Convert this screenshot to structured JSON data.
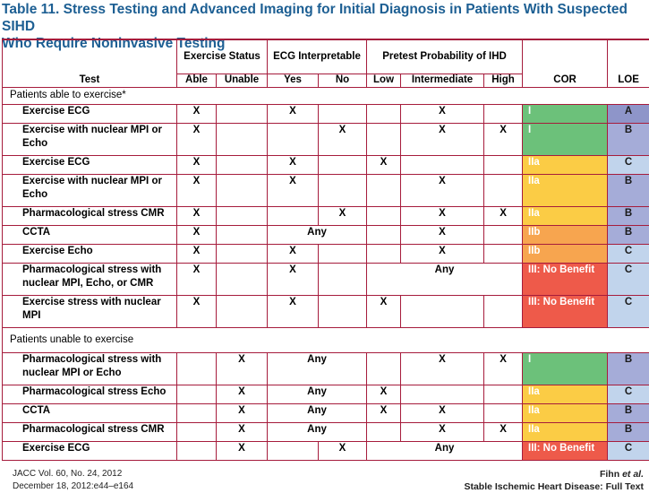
{
  "title_line1": "Table 11.  Stress Testing and Advanced Imaging for Initial Diagnosis in Patients With Suspected SIHD",
  "title_line2": "Who Require Noninvasive Testing",
  "headers": {
    "test": "Test",
    "exercise_status": "Exercise Status",
    "ecg_interpretable": "ECG Interpretable",
    "pretest": "Pretest Probability of IHD",
    "cor": "COR",
    "loe": "LOE",
    "sub": {
      "able": "Able",
      "unable": "Unable",
      "yes": "Yes",
      "no": "No",
      "low": "Low",
      "intermediate": "Intermediate",
      "high": "High"
    }
  },
  "sections": [
    {
      "label": "Patients able to exercise*"
    },
    {
      "label": "Patients unable to exercise"
    }
  ],
  "rows_able": [
    {
      "test": "Exercise ECG",
      "able": "X",
      "unable": "",
      "yes": "X",
      "no": "",
      "ecg_any": "",
      "low": "",
      "int": "X",
      "high": "",
      "pre_any": "",
      "cor": "I",
      "loe": "A"
    },
    {
      "test": "Exercise with nuclear MPI or Echo",
      "able": "X",
      "unable": "",
      "yes": "",
      "no": "X",
      "ecg_any": "",
      "low": "",
      "int": "X",
      "high": "X",
      "pre_any": "",
      "cor": "I",
      "loe": "B"
    },
    {
      "test": "Exercise ECG",
      "able": "X",
      "unable": "",
      "yes": "X",
      "no": "",
      "ecg_any": "",
      "low": "X",
      "int": "",
      "high": "",
      "pre_any": "",
      "cor": "IIa",
      "loe": "C"
    },
    {
      "test": "Exercise with nuclear MPI or Echo",
      "able": "X",
      "unable": "",
      "yes": "X",
      "no": "",
      "ecg_any": "",
      "low": "",
      "int": "X",
      "high": "",
      "pre_any": "",
      "cor": "IIa",
      "loe": "B"
    },
    {
      "test": "Pharmacological stress CMR",
      "able": "X",
      "unable": "",
      "yes": "",
      "no": "X",
      "ecg_any": "",
      "low": "",
      "int": "X",
      "high": "X",
      "pre_any": "",
      "cor": "IIa",
      "loe": "B"
    },
    {
      "test": "CCTA",
      "able": "X",
      "unable": "",
      "yes": "",
      "no": "",
      "ecg_any": "Any",
      "low": "",
      "int": "X",
      "high": "",
      "pre_any": "",
      "cor": "IIb",
      "loe": "B"
    },
    {
      "test": "Exercise Echo",
      "able": "X",
      "unable": "",
      "yes": "X",
      "no": "",
      "ecg_any": "",
      "low": "",
      "int": "X",
      "high": "",
      "pre_any": "",
      "cor": "IIb",
      "loe": "C"
    },
    {
      "test": "Pharmacological stress with nuclear MPI, Echo, or CMR",
      "able": "X",
      "unable": "",
      "yes": "X",
      "no": "",
      "ecg_any": "",
      "low": "",
      "int": "",
      "high": "",
      "pre_any": "Any",
      "cor": "III: No Benefit",
      "loe": "C"
    },
    {
      "test": "Exercise stress with nuclear MPI",
      "able": "X",
      "unable": "",
      "yes": "X",
      "no": "",
      "ecg_any": "",
      "low": "X",
      "int": "",
      "high": "",
      "pre_any": "",
      "cor": "III: No Benefit",
      "loe": "C"
    }
  ],
  "rows_unable": [
    {
      "test": "Pharmacological stress with nuclear MPI or Echo",
      "able": "",
      "unable": "X",
      "yes": "",
      "no": "",
      "ecg_any": "Any",
      "low": "",
      "int": "X",
      "high": "X",
      "pre_any": "",
      "cor": "I",
      "loe": "B"
    },
    {
      "test": "Pharmacological stress Echo",
      "able": "",
      "unable": "X",
      "yes": "",
      "no": "",
      "ecg_any": "Any",
      "low": "X",
      "int": "",
      "high": "",
      "pre_any": "",
      "cor": "IIa",
      "loe": "C"
    },
    {
      "test": "CCTA",
      "able": "",
      "unable": "X",
      "yes": "",
      "no": "",
      "ecg_any": "Any",
      "low": "X",
      "int": "X",
      "high": "",
      "pre_any": "",
      "cor": "IIa",
      "loe": "B"
    },
    {
      "test": "Pharmacological stress CMR",
      "able": "",
      "unable": "X",
      "yes": "",
      "no": "",
      "ecg_any": "Any",
      "low": "",
      "int": "X",
      "high": "X",
      "pre_any": "",
      "cor": "IIa",
      "loe": "B"
    },
    {
      "test": "Exercise ECG",
      "able": "",
      "unable": "X",
      "yes": "",
      "no": "X",
      "ecg_any": "",
      "low": "",
      "int": "",
      "high": "",
      "pre_any": "Any",
      "cor": "III: No Benefit",
      "loe": "C"
    }
  ],
  "colors": {
    "title": "#1d5f93",
    "border": "#a61c3c",
    "cor_I": "#6cc17a",
    "cor_IIa": "#fbcc45",
    "cor_IIb": "#f7a54f",
    "cor_III": "#ee5a4a",
    "loe_A": "#8e95c9",
    "loe_B": "#a5acd8",
    "loe_C": "#c1d4ec"
  },
  "footer": {
    "journal": "JACC Vol. 60, No. 24, 2012",
    "date": "December 18, 2012:e44–e164",
    "author_name": "Fihn",
    "author_suffix": "et al.",
    "running_title": "Stable Ischemic Heart Disease: Full Text"
  }
}
